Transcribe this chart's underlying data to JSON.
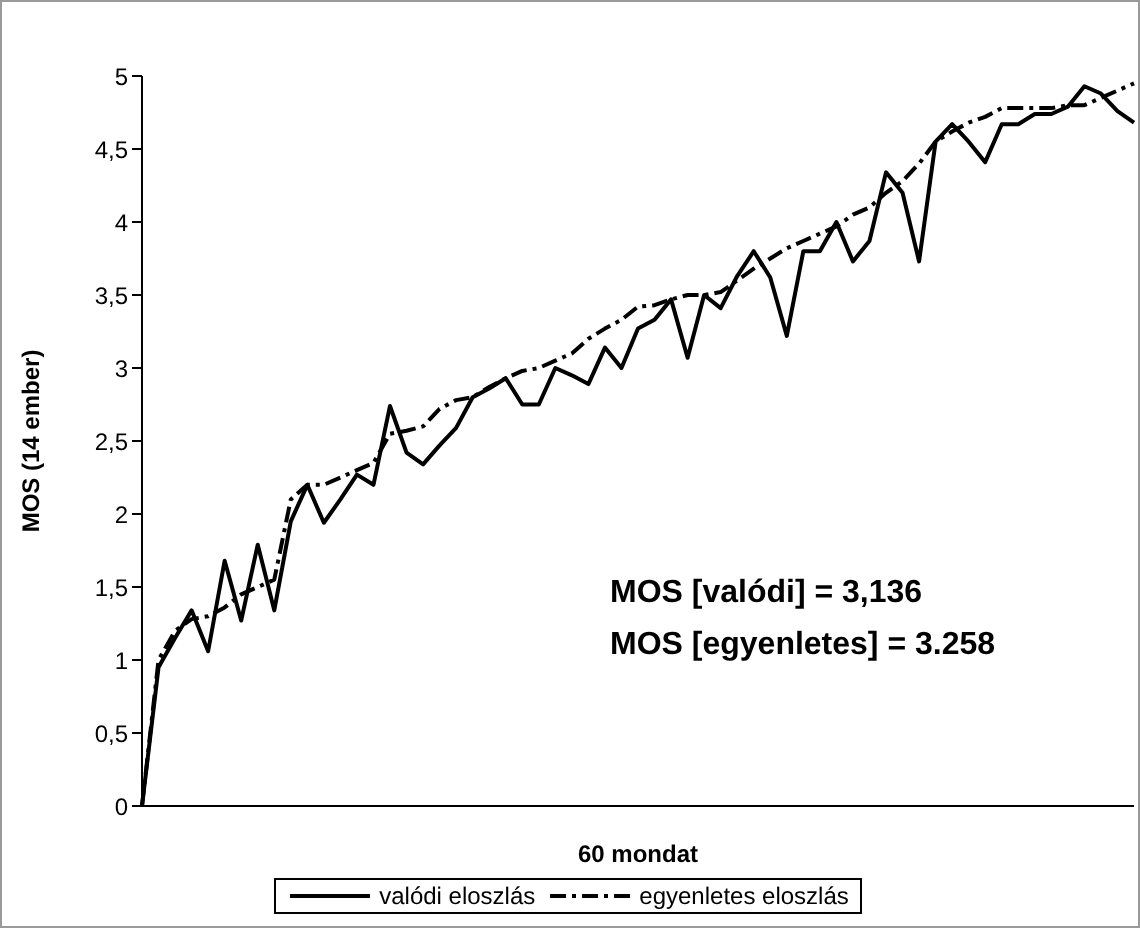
{
  "chart_data": {
    "type": "line",
    "xlabel": "60 mondat",
    "ylabel": "MOS (14 ember)",
    "categories": [
      null,
      null,
      null,
      null,
      null,
      null,
      null,
      null,
      null,
      null,
      null,
      null,
      null,
      null,
      null,
      null,
      null,
      null,
      null,
      null,
      null,
      null,
      null,
      null,
      null,
      null,
      null,
      null,
      null,
      null,
      null,
      null,
      null,
      null,
      null,
      null,
      null,
      null,
      null,
      null,
      null,
      null,
      null,
      null,
      null,
      null,
      null,
      null,
      null,
      null,
      null,
      null,
      null,
      null,
      null,
      null,
      null,
      null,
      null,
      null,
      null
    ],
    "series": [
      {
        "name": "valódi eloszlás",
        "color": "#000000",
        "line_style": "solid",
        "values": [
          0,
          0.95,
          1.15,
          1.34,
          1.06,
          1.68,
          1.27,
          1.79,
          1.34,
          1.95,
          2.2,
          1.94,
          2.1,
          2.27,
          2.2,
          2.74,
          2.42,
          2.34,
          2.47,
          2.59,
          2.8,
          2.86,
          2.93,
          2.75,
          2.75,
          3.0,
          2.95,
          2.89,
          3.14,
          3.0,
          3.27,
          3.33,
          3.47,
          3.07,
          3.5,
          3.41,
          3.63,
          3.8,
          3.62,
          3.22,
          3.8,
          3.8,
          4.0,
          3.73,
          3.87,
          4.34,
          4.2,
          3.73,
          4.55,
          4.67,
          4.55,
          4.41,
          4.67,
          4.67,
          4.74,
          4.74,
          4.79,
          4.93,
          4.88,
          4.76,
          4.68
        ]
      },
      {
        "name": "egyenletes eloszlás",
        "color": "#000000",
        "line_style": "dashed",
        "values": [
          0,
          1.0,
          1.2,
          1.28,
          1.3,
          1.36,
          1.45,
          1.5,
          1.55,
          2.1,
          2.2,
          2.2,
          2.25,
          2.3,
          2.35,
          2.55,
          2.57,
          2.6,
          2.72,
          2.78,
          2.8,
          2.87,
          2.93,
          2.98,
          3.0,
          3.05,
          3.1,
          3.2,
          3.27,
          3.33,
          3.42,
          3.43,
          3.47,
          3.5,
          3.5,
          3.52,
          3.6,
          3.68,
          3.75,
          3.82,
          3.87,
          3.92,
          3.97,
          4.05,
          4.1,
          4.2,
          4.28,
          4.4,
          4.55,
          4.62,
          4.68,
          4.72,
          4.78,
          4.78,
          4.78,
          4.78,
          4.8,
          4.8,
          4.85,
          4.9,
          4.95
        ]
      }
    ],
    "ylim": [
      0,
      5
    ],
    "yticks": [
      0,
      {
        "value": 0.5,
        "label": "0,5"
      },
      1,
      {
        "value": 1.5,
        "label": "1,5"
      },
      2,
      {
        "value": 2.5,
        "label": "2,5"
      },
      3,
      {
        "value": 3.5,
        "label": "3,5"
      },
      4,
      {
        "value": 4.5,
        "label": "4,5"
      },
      5
    ],
    "tick_labels": "y",
    "marker": "none",
    "legend": "bottom",
    "annotations": [
      "MOS [valódi] = 3,136",
      "MOS [egyenletes] = 3.258"
    ]
  }
}
